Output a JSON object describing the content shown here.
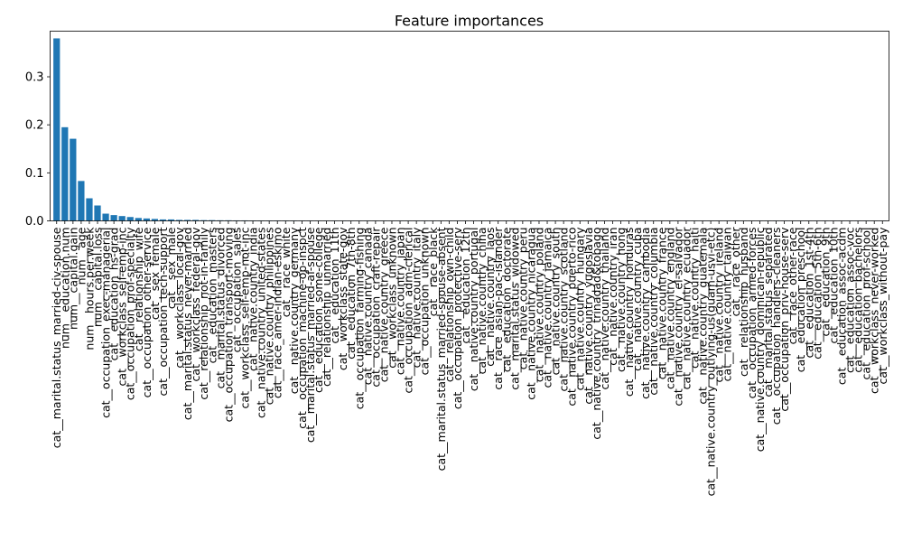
{
  "chart_data": {
    "type": "bar",
    "title": "Feature importances",
    "xlabel": "",
    "ylabel": "",
    "ylim": [
      0,
      0.395
    ],
    "yticks": [
      0.0,
      0.1,
      0.2,
      0.3
    ],
    "ytick_labels": [
      "0.0",
      "0.1",
      "0.2",
      "0.3"
    ],
    "grid": false,
    "legend": false,
    "bar_color": "#1f77b4",
    "categories": [
      "cat__marital.status_married-civ-spouse",
      "num__education.num",
      "num__capital.gain",
      "num__age",
      "num__hours.per.week",
      "num__capital.loss",
      "cat__occupation_exec-managerial",
      "cat__education_hs-grad",
      "cat__workclass_self-emp-inc",
      "cat__occupation_prof-specialty",
      "cat__relationship_wife",
      "cat__occupation_other-service",
      "cat__sex_female",
      "cat__occupation_tech-support",
      "cat__sex_male",
      "cat__workclass_local-gov",
      "cat__marital.status_never-married",
      "cat__workclass_federal-gov",
      "cat__relationship_not-in-family",
      "cat__education_masters",
      "cat__marital.status_divorced",
      "cat__occupation_transport-moving",
      "cat__occupation_sales",
      "cat__workclass_self-emp-not-inc",
      "cat__native.country_india",
      "cat__native.country_united-states",
      "cat__native.country_philippines",
      "cat__race_amer-indian-eskimo",
      "cat__race_white",
      "cat__native.country_germany",
      "cat__occupation_machine-op-inspct",
      "cat__marital.status_married-af-spouse",
      "cat__education_some-college",
      "cat__relationship_unmarried",
      "cat__education_11th",
      "cat__workclass_state-gov",
      "cat__education_7th-8th",
      "cat__occupation_farming-fishing",
      "cat__native.country_canada",
      "cat__occupation_craft-repair",
      "cat__native.country_greece",
      "cat__workclass_unknown",
      "cat__native.country_japan",
      "cat__occupation_adm-clerical",
      "cat__native.country_italy",
      "cat__occupation_unknown",
      "cat__race_black",
      "cat__marital.status_married-spouse-absent",
      "cat__relationship_own-child",
      "cat__occupation_protective-serv",
      "cat__education_12th",
      "cat__native.country_portugal",
      "cat__native.country_china",
      "cat__native.country_laos",
      "cat__race_asian-pac-islander",
      "cat__education_doctorate",
      "cat__marital.status_widowed",
      "cat__native.country_peru",
      "cat__native.country_nicaragua",
      "cat__native.country_poland",
      "cat__native.country_jamaica",
      "cat__native.country_south",
      "cat__native.country_scotland",
      "cat__native.country_puerto-rico",
      "cat__native.country_hungary",
      "cat__native.country_yugoslavia",
      "cat__native.country_trinadad&tobago",
      "cat__native.country_thailand",
      "cat__native.country_iran",
      "cat__native.country_hong",
      "cat__native.country_honduras",
      "cat__native.country_cuba",
      "cat__native.country_cambodia",
      "cat__native.country_columbia",
      "cat__native.country_france",
      "cat__native.country_england",
      "cat__native.country_el-salvador",
      "cat__native.country_ecuador",
      "cat__native.country_haiti",
      "cat__native.country_guatemala",
      "cat__native.country_outlying-us(guam-usvi-etc)",
      "cat__native.country_ireland",
      "cat__native.country_taiwan",
      "cat__race_other",
      "cat__relationship_husband",
      "cat__occupation_armed-forces",
      "cat__native.country_dominican-republic",
      "cat__marital.status_separated",
      "cat__occupation_handlers-cleaners",
      "cat__occupation_priv-house-serv",
      "cat__race_other-race",
      "cat__education_preschool",
      "cat__education_1st-4th",
      "cat__education_5th-6th",
      "cat__education_9th",
      "cat__education_10th",
      "cat__education_assoc-acdm",
      "cat__education_assoc-voc",
      "cat__education_bachelors",
      "cat__education_prof-school",
      "cat__workclass_never-worked",
      "cat__workclass_without-pay"
    ],
    "values": [
      0.38,
      0.195,
      0.171,
      0.083,
      0.047,
      0.032,
      0.015,
      0.012,
      0.01,
      0.008,
      0.006,
      0.005,
      0.004,
      0.003,
      0.003,
      0.002,
      0.002,
      0.002,
      0.0015,
      0.0015,
      0.0012,
      0.0012,
      0.001,
      0.001,
      0.0008,
      0.0008,
      0.0007,
      0.0007,
      0.0006,
      0.0006,
      0.0005,
      0.0005,
      0.0004,
      0.0004,
      0.0004,
      0.0003,
      0.0003,
      0.0003,
      0.0003,
      0.0002,
      0.0002,
      0.0002,
      0.0002,
      0.0002,
      0.0001,
      0.0001,
      0.0001,
      0.0001,
      0.0001,
      0.0001,
      0.0001,
      0.0001,
      0.0001,
      0.0001,
      0.0001,
      0.0001,
      0.0001,
      0.0001,
      0.0001,
      0.0001,
      0.0001,
      0.0001,
      0.0001,
      0.0001,
      0.0001,
      0.0001,
      0.0001,
      0.0001,
      0.0001,
      0.0001,
      0.0001,
      0.0001,
      0.0001,
      0.0001,
      0.0001,
      0.0001,
      0.0001,
      0.0001,
      0.0001,
      0.0001,
      0.0001,
      0.0001,
      0.0001,
      0.0001,
      0.0001,
      0.0001,
      0.0001,
      0.0001,
      0.0001,
      0.0001,
      0.0001,
      0.0001,
      0.0001,
      0.0001,
      0.0001,
      0.0001,
      0.0001,
      0.0001,
      0.0001,
      0.0001,
      0.0001,
      0.0001
    ]
  }
}
